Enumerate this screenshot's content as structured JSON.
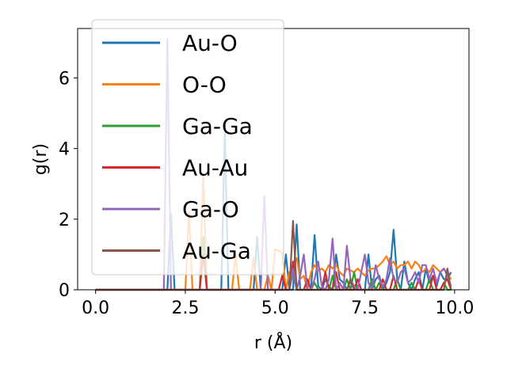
{
  "chart_data": {
    "type": "line",
    "title": "",
    "xlabel": "r (Å)",
    "ylabel": "g(r)",
    "xlim": [
      -0.5,
      10.4
    ],
    "ylim": [
      0,
      7.4
    ],
    "xticks": [
      0.0,
      2.5,
      5.0,
      7.5,
      10.0
    ],
    "xtick_labels": [
      "0.0",
      "2.5",
      "5.0",
      "7.5",
      "10.0"
    ],
    "yticks": [
      0,
      2,
      4,
      6
    ],
    "ytick_labels": [
      "0",
      "2",
      "4",
      "6"
    ],
    "grid": false,
    "legend_position": "upper-left",
    "x": [
      0.0,
      0.1,
      0.2,
      0.3,
      0.4,
      0.5,
      0.6,
      0.7,
      0.8,
      0.9,
      1.0,
      1.1,
      1.2,
      1.3,
      1.4,
      1.5,
      1.6,
      1.7,
      1.8,
      1.9,
      2.0,
      2.1,
      2.2,
      2.3,
      2.4,
      2.5,
      2.6,
      2.7,
      2.8,
      2.9,
      3.0,
      3.1,
      3.2,
      3.3,
      3.4,
      3.5,
      3.6,
      3.7,
      3.8,
      3.9,
      4.0,
      4.1,
      4.2,
      4.3,
      4.4,
      4.5,
      4.6,
      4.7,
      4.8,
      4.9,
      5.0,
      5.1,
      5.2,
      5.3,
      5.4,
      5.5,
      5.6,
      5.7,
      5.8,
      5.9,
      6.0,
      6.1,
      6.2,
      6.3,
      6.4,
      6.5,
      6.6,
      6.7,
      6.8,
      6.9,
      7.0,
      7.1,
      7.2,
      7.3,
      7.4,
      7.5,
      7.6,
      7.7,
      7.8,
      7.9,
      8.0,
      8.1,
      8.2,
      8.3,
      8.4,
      8.5,
      8.6,
      8.7,
      8.8,
      8.9,
      9.0,
      9.1,
      9.2,
      9.3,
      9.4,
      9.5,
      9.6,
      9.7,
      9.8,
      9.9
    ],
    "series": [
      {
        "name": "Au-O",
        "color": "#1f77b4",
        "values": [
          0,
          0,
          0,
          0,
          0,
          0,
          0,
          0,
          0,
          0,
          0,
          0,
          0,
          0,
          0,
          0,
          0,
          0,
          0,
          0,
          0,
          2.15,
          0,
          0,
          0,
          0,
          0,
          0,
          0,
          0,
          0,
          0,
          0,
          0,
          0,
          0,
          4.5,
          0,
          0,
          0,
          0,
          0,
          0,
          0,
          0,
          1.5,
          0,
          0,
          0,
          0,
          0,
          0,
          0,
          1.0,
          0,
          0,
          1.85,
          0,
          0,
          0,
          0,
          1.55,
          0.1,
          0,
          0.3,
          0.1,
          0,
          1.0,
          0.3,
          0.2,
          0,
          0.25,
          0,
          0.3,
          0,
          0,
          1.0,
          0,
          0.3,
          0.4,
          0,
          0.2,
          0.5,
          1.7,
          0.3,
          0,
          0.8,
          0.2,
          0,
          0.3,
          0.5,
          0,
          0.6,
          0.2,
          0.4,
          0.1,
          0.5,
          0.3,
          0.3,
          0.5
        ]
      },
      {
        "name": "O-O",
        "color": "#ff7f0e",
        "values": [
          0,
          0,
          0,
          0,
          0,
          0,
          0,
          0,
          0,
          0,
          0,
          0,
          0,
          0,
          0,
          0,
          0,
          0,
          0,
          0,
          0,
          0,
          0,
          0,
          0,
          0,
          2.2,
          0,
          0,
          0,
          3.3,
          0,
          0,
          0,
          0,
          0,
          0,
          0,
          0,
          1.0,
          0,
          0,
          0,
          0,
          0.9,
          0,
          0,
          0,
          0.4,
          0,
          1.15,
          1.1,
          1.05,
          0,
          0.5,
          0.6,
          0.9,
          0.3,
          0.4,
          0,
          0.5,
          0.7,
          0.55,
          0.6,
          0.5,
          0.7,
          0.6,
          0.7,
          0.5,
          0.4,
          0.6,
          0.55,
          0.5,
          0.6,
          0.5,
          0.4,
          0.55,
          0.6,
          0.6,
          0.7,
          0.8,
          0.95,
          0.7,
          0.8,
          0.6,
          0.7,
          0.7,
          0.8,
          0.6,
          0.8,
          0.7,
          0.5,
          0.6,
          0.5,
          0.7,
          0.6,
          0.5,
          0.6,
          0.45,
          0.3
        ]
      },
      {
        "name": "Ga-Ga",
        "color": "#2ca02c",
        "values": [
          0,
          0,
          0,
          0,
          0,
          0,
          0,
          0,
          0,
          0,
          0,
          0,
          0,
          0,
          0,
          0,
          0,
          0,
          0,
          0,
          0,
          0,
          0,
          0,
          0,
          0,
          0,
          0,
          0,
          0,
          1.5,
          0,
          0,
          0,
          0,
          0,
          0,
          0,
          0,
          0,
          0,
          0,
          0,
          0,
          0,
          0,
          0,
          0,
          0,
          0,
          0,
          0,
          0,
          0,
          0,
          0.5,
          0,
          0,
          0,
          0,
          0,
          0.2,
          0,
          0,
          0,
          0,
          0.4,
          0,
          0,
          0,
          0.3,
          0,
          0.5,
          0,
          0,
          0,
          0,
          0.3,
          0,
          0.2,
          0,
          0,
          0,
          0,
          0.3,
          0,
          0,
          0,
          0.2,
          0,
          0,
          0,
          0,
          0.3,
          0,
          0,
          0,
          0.2,
          0,
          0
        ]
      },
      {
        "name": "Au-Au",
        "color": "#d62728",
        "values": [
          0,
          0,
          0,
          0,
          0,
          0,
          0,
          0,
          0,
          0,
          0,
          0,
          0,
          0,
          0,
          0,
          0,
          0,
          0,
          0,
          0,
          0,
          0,
          0,
          0,
          0,
          0,
          0,
          0,
          0,
          1.0,
          0,
          0,
          0,
          0,
          0,
          0,
          0,
          0,
          0,
          0,
          0,
          0,
          0,
          0,
          0,
          0,
          0,
          0,
          0,
          0,
          0,
          0.4,
          0,
          0,
          0.8,
          0,
          0,
          0,
          0.3,
          0,
          0,
          0,
          0,
          0.5,
          0,
          0,
          0.5,
          0,
          0,
          0,
          0,
          0,
          0.3,
          0,
          0,
          0,
          0,
          0,
          0,
          0.3,
          0,
          0,
          0.4,
          0,
          0,
          0,
          0,
          0,
          0,
          0.3,
          0,
          0,
          0,
          0.4,
          0,
          0,
          0.2,
          0.3,
          0
        ]
      },
      {
        "name": "Ga-O",
        "color": "#9467bd",
        "values": [
          0,
          0,
          0,
          0,
          0,
          0,
          0,
          0,
          0,
          0,
          0,
          0,
          0,
          0,
          0,
          0,
          0,
          0,
          0,
          0,
          7.1,
          0,
          0,
          0,
          0,
          0,
          0,
          0,
          0,
          0,
          0,
          0,
          0,
          0,
          0,
          0,
          0,
          0,
          0,
          0,
          0,
          0,
          0,
          0,
          0,
          0,
          0,
          2.65,
          0,
          0,
          0,
          0,
          0,
          0,
          0,
          0.6,
          0,
          0.4,
          1.0,
          0,
          0,
          0.3,
          0.8,
          0.1,
          0,
          0.3,
          1.45,
          0,
          0.2,
          0,
          1.25,
          0.3,
          0.1,
          0,
          0.5,
          1.0,
          0.2,
          0,
          0.7,
          0.3,
          0.1,
          0.3,
          0.9,
          0.3,
          0.2,
          0.5,
          0.6,
          0.2,
          0.3,
          0.5,
          0.2,
          0.7,
          0.7,
          0.3,
          0.6,
          0.2,
          0.5,
          0.6,
          0.4,
          0.1
        ]
      },
      {
        "name": "Au-Ga",
        "color": "#8c564b",
        "values": [
          0,
          0,
          0,
          0,
          0,
          0,
          0,
          0,
          0,
          0,
          0,
          0,
          0,
          0,
          0,
          0,
          0,
          0,
          0,
          0,
          0,
          0,
          0,
          0,
          0,
          0,
          0,
          0,
          0,
          0,
          0,
          0,
          0,
          0,
          0,
          0,
          0,
          0,
          0,
          0,
          0,
          0,
          0,
          0,
          0,
          0,
          0,
          0,
          0,
          0,
          0,
          0,
          0,
          0,
          0,
          1.95,
          0,
          0,
          0,
          0,
          0,
          0,
          0,
          0,
          0,
          0,
          0,
          0,
          0,
          0,
          0,
          0.3,
          0,
          0,
          0,
          0,
          0,
          0,
          0,
          0,
          0,
          0,
          0,
          0,
          0,
          0,
          0,
          0,
          0,
          0,
          0,
          0,
          0,
          0,
          0,
          0,
          0,
          0,
          0.6,
          0
        ]
      }
    ]
  }
}
